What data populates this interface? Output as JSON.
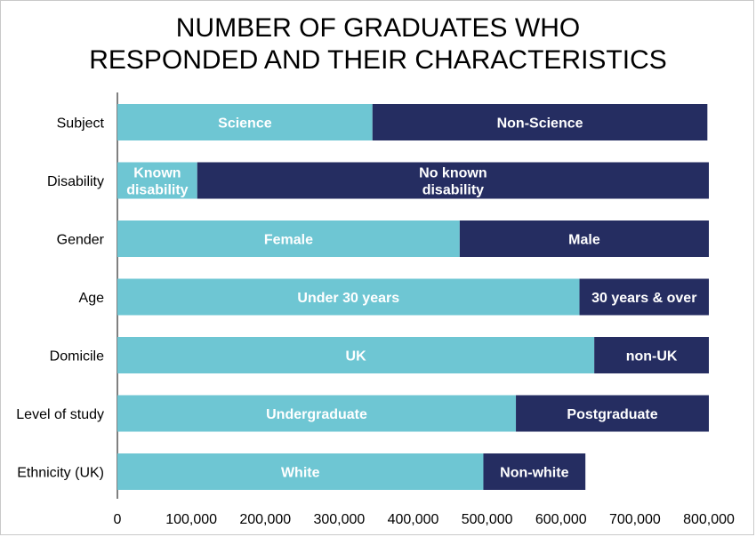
{
  "title_line1": "NUMBER OF GRADUATES WHO",
  "title_line2": "RESPONDED AND THEIR CHARACTERISTICS",
  "colors": {
    "light": "#6EC6D3",
    "dark": "#252D61"
  },
  "chart_data": {
    "type": "bar",
    "orientation": "horizontal",
    "stacked": true,
    "title": "NUMBER OF GRADUATES WHO RESPONDED AND THEIR CHARACTERISTICS",
    "xlim": [
      0,
      800000
    ],
    "ticks": [
      "0",
      "100,000",
      "200,000",
      "300,000",
      "400,000",
      "500,000",
      "600,000",
      "700,000",
      "800,000"
    ],
    "tick_values": [
      0,
      100000,
      200000,
      300000,
      400000,
      500000,
      600000,
      700000,
      800000
    ],
    "grid": false,
    "bars": [
      {
        "category": "Subject",
        "segments": [
          {
            "label": [
              "Science"
            ],
            "value": 345000,
            "color": "light"
          },
          {
            "label": [
              "Non-Science"
            ],
            "value": 453000,
            "color": "dark"
          }
        ]
      },
      {
        "category": "Disability",
        "segments": [
          {
            "label": [
              "Known",
              "disability"
            ],
            "value": 108000,
            "color": "light"
          },
          {
            "label": [
              "No known",
              "disability"
            ],
            "value": 692000,
            "color": "dark"
          }
        ]
      },
      {
        "category": "Gender",
        "segments": [
          {
            "label": [
              "Female"
            ],
            "value": 463000,
            "color": "light"
          },
          {
            "label": [
              "Male"
            ],
            "value": 337000,
            "color": "dark"
          }
        ]
      },
      {
        "category": "Age",
        "segments": [
          {
            "label": [
              "Under 30 years"
            ],
            "value": 625000,
            "color": "light"
          },
          {
            "label": [
              "30 years & over"
            ],
            "value": 175000,
            "color": "dark"
          }
        ]
      },
      {
        "category": "Domicile",
        "segments": [
          {
            "label": [
              "UK"
            ],
            "value": 645000,
            "color": "light"
          },
          {
            "label": [
              "non-UK"
            ],
            "value": 155000,
            "color": "dark"
          }
        ]
      },
      {
        "category": "Level of study",
        "segments": [
          {
            "label": [
              "Undergraduate"
            ],
            "value": 539000,
            "color": "light"
          },
          {
            "label": [
              "Postgraduate"
            ],
            "value": 261000,
            "color": "dark"
          }
        ]
      },
      {
        "category": "Ethnicity (UK)",
        "segments": [
          {
            "label": [
              "White"
            ],
            "value": 495000,
            "color": "light"
          },
          {
            "label": [
              "Non-white"
            ],
            "value": 138000,
            "color": "dark"
          }
        ]
      }
    ]
  }
}
